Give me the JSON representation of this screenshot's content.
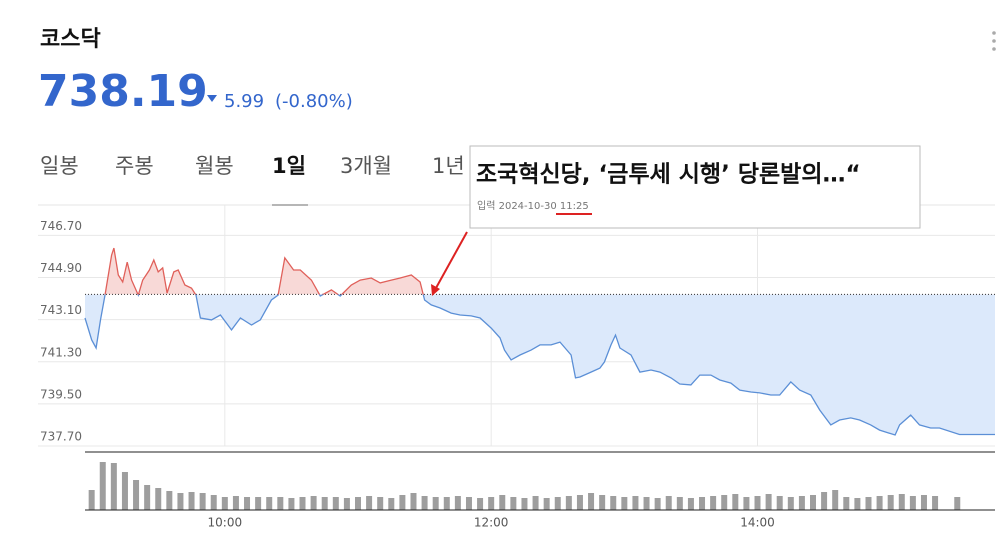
{
  "header": {
    "title": "코스닥",
    "price": 738.19,
    "change": 5.99,
    "change_pct": "(-0.80%)"
  },
  "tabs": [
    "일봉",
    "주봉",
    "월봉",
    "1일",
    "3개월",
    "1년"
  ],
  "active_tab": 3,
  "news": {
    "headline": "조국혁신당, ‘금투세 시행’ 당론발의…“",
    "label": "입력",
    "date": "2024-10-30",
    "time": "11:25"
  },
  "chart_data": [
    {
      "type": "line",
      "x": [
        537,
        540,
        542,
        544,
        546,
        549,
        550,
        552,
        554,
        556,
        558,
        561,
        563,
        566,
        568,
        570,
        572,
        574,
        577,
        579,
        582,
        585,
        587,
        589,
        594,
        598,
        603,
        607,
        612,
        616,
        621,
        624,
        627,
        631,
        634,
        639,
        643,
        648,
        652,
        657,
        661,
        666,
        670,
        675,
        679,
        684,
        688,
        690,
        693,
        697,
        702,
        706,
        711,
        715,
        720,
        724,
        726,
        729,
        733,
        738,
        742,
        747,
        751,
        756,
        758,
        760,
        765,
        769,
        771,
        774,
        776,
        778,
        783,
        787,
        792,
        796,
        801,
        805,
        810,
        814,
        819,
        823,
        828,
        832,
        837,
        841,
        846,
        850,
        855,
        859,
        864,
        868,
        873,
        877,
        882,
        886,
        891,
        895,
        902,
        904,
        909,
        913,
        918,
        922,
        931,
        947
      ],
      "values": [
        743.17,
        742.23,
        741.89,
        743.09,
        744.15,
        745.86,
        746.16,
        745.01,
        744.71,
        745.56,
        744.79,
        744.15,
        744.79,
        745.22,
        745.65,
        745.14,
        745.31,
        744.24,
        745.14,
        745.22,
        744.58,
        744.45,
        744.15,
        743.17,
        743.09,
        743.3,
        742.66,
        743.17,
        742.87,
        743.09,
        743.94,
        744.15,
        745.74,
        745.22,
        745.22,
        744.79,
        744.11,
        744.37,
        744.11,
        744.58,
        744.79,
        744.88,
        744.67,
        744.79,
        744.88,
        745.01,
        744.71,
        743.94,
        743.73,
        743.6,
        743.38,
        743.3,
        743.26,
        743.17,
        742.74,
        742.32,
        741.8,
        741.38,
        741.59,
        741.8,
        742.02,
        742.02,
        742.14,
        741.59,
        740.61,
        740.65,
        740.86,
        741.03,
        741.29,
        742.02,
        742.44,
        741.89,
        741.59,
        740.86,
        740.95,
        740.86,
        740.61,
        740.35,
        740.31,
        740.73,
        740.73,
        740.52,
        740.39,
        740.09,
        740.01,
        739.97,
        739.88,
        739.88,
        740.44,
        740.09,
        739.88,
        739.24,
        738.6,
        738.81,
        738.9,
        738.81,
        738.6,
        738.38,
        738.17,
        738.6,
        739.02,
        738.6,
        738.47,
        738.47,
        738.19,
        738.19
      ],
      "xlim": [
        537,
        947
      ],
      "ylim": [
        737.7,
        748.0
      ],
      "yticks": [
        {
          "value": 746.7,
          "label": "746.70"
        },
        {
          "value": 744.9,
          "label": "744.90"
        },
        {
          "value": 743.1,
          "label": "743.10"
        },
        {
          "value": 741.3,
          "label": "741.30"
        },
        {
          "value": 739.5,
          "label": "739.50"
        },
        {
          "value": 737.7,
          "label": "737.70"
        }
      ],
      "xticks": [
        {
          "value": 600,
          "label": "10:00"
        },
        {
          "value": 720,
          "label": "12:00"
        },
        {
          "value": 840,
          "label": "14:00"
        }
      ],
      "reference_line": 744.18,
      "color_up": "#e0605a",
      "color_down": "#5b8fd6",
      "fill_up": "#f8d9d7",
      "fill_down": "#dce9fb",
      "grid": true
    },
    {
      "type": "bar",
      "x": [
        540,
        545,
        550,
        555,
        560,
        565,
        570,
        575,
        580,
        585,
        590,
        595,
        600,
        605,
        610,
        615,
        620,
        625,
        630,
        635,
        640,
        645,
        650,
        655,
        660,
        665,
        670,
        675,
        680,
        685,
        690,
        695,
        700,
        705,
        710,
        715,
        720,
        725,
        730,
        735,
        740,
        745,
        750,
        755,
        760,
        765,
        770,
        775,
        780,
        785,
        790,
        795,
        800,
        805,
        810,
        815,
        820,
        825,
        830,
        835,
        840,
        845,
        850,
        855,
        860,
        865,
        870,
        875,
        880,
        885,
        890,
        895,
        900,
        905,
        910,
        915,
        920,
        930
      ],
      "values": [
        20,
        48,
        47,
        38,
        30,
        25,
        22,
        19,
        17,
        18,
        17,
        15,
        13,
        14,
        13,
        13,
        13,
        13,
        12,
        13,
        14,
        13,
        13,
        12,
        13,
        14,
        13,
        12,
        15,
        17,
        14,
        13,
        13,
        14,
        13,
        12,
        13,
        15,
        13,
        12,
        14,
        12,
        13,
        14,
        15,
        17,
        15,
        14,
        13,
        14,
        13,
        12,
        14,
        13,
        12,
        13,
        14,
        15,
        16,
        13,
        14,
        16,
        14,
        13,
        14,
        15,
        18,
        20,
        13,
        12,
        13,
        14,
        15,
        16,
        14,
        15,
        14,
        13
      ],
      "xlim": [
        537,
        947
      ],
      "ylim": [
        0,
        50
      ],
      "color": "#9e9e9e"
    }
  ]
}
